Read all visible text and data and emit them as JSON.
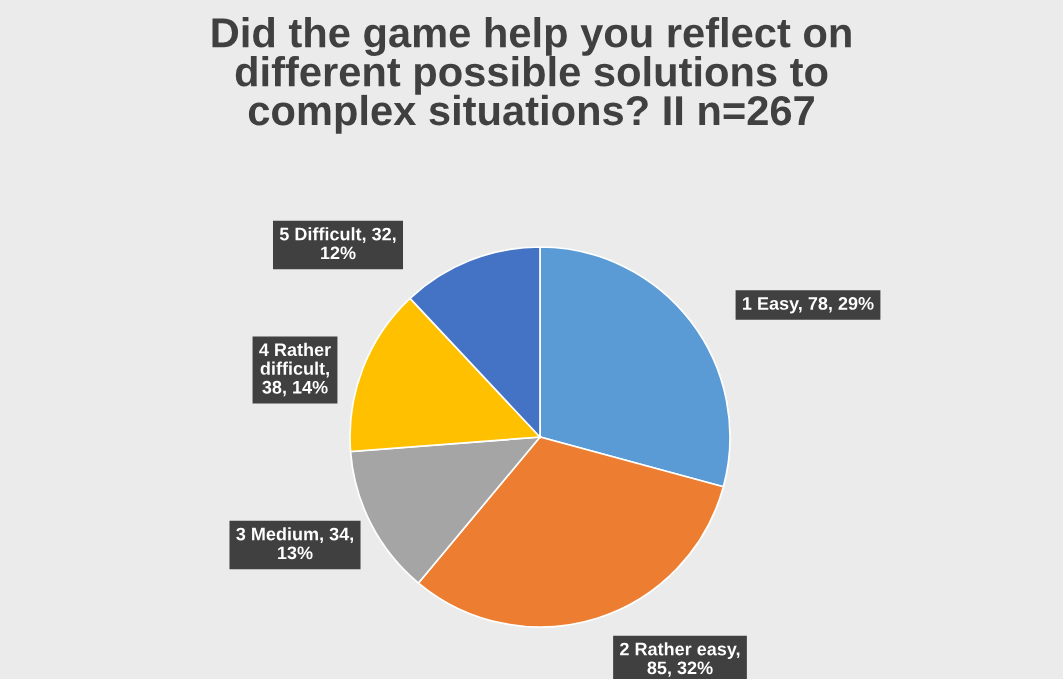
{
  "chart_data": {
    "type": "pie",
    "title": "Did the game help you reflect on different possible solutions to complex situations? II n=267",
    "categories": [
      "1 Easy, 78, 29%",
      "2 Rather easy, 85, 32%",
      "3 Medium, 34, 13%",
      "4 Rather difficult, 38, 14%",
      "5 Difficult, 32, 12%"
    ],
    "values": [
      78,
      85,
      34,
      38,
      32
    ],
    "colors": [
      "#5b9bd5",
      "#ed7d31",
      "#a5a5a5",
      "#ffc000",
      "#4472c4"
    ]
  }
}
